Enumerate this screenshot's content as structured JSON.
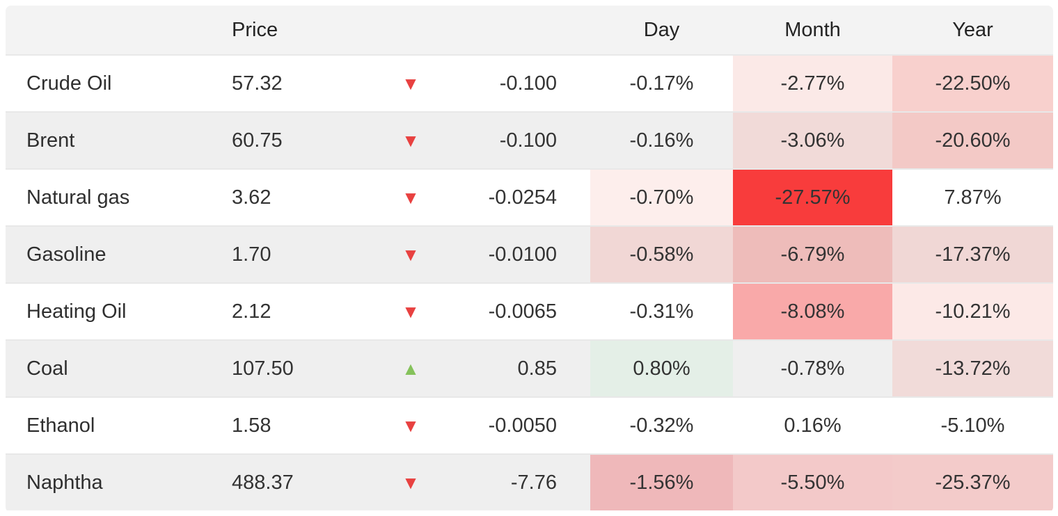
{
  "colors": {
    "header_bg": "#f3f3f3",
    "zebra_row_bg": "#efefef",
    "row_bg": "#ffffff",
    "separator": "#e8e8e8",
    "text": "#333333",
    "down_arrow": "#e84140",
    "up_arrow": "#85c25b",
    "strong_negative_cell": "#f83c3c",
    "positive_cell": "#e4efe7"
  },
  "table": {
    "headers": {
      "name": "",
      "price": "Price",
      "day": "Day",
      "month": "Month",
      "year": "Year"
    },
    "rows": [
      {
        "name": "Crude Oil",
        "price": "57.32",
        "direction": "down",
        "change": "-0.100",
        "day": "-0.17%",
        "month": "-2.77%",
        "year": "-22.50%",
        "day_bg": "",
        "month_bg": "#fbe9e7",
        "year_bg": "#f8d0cd"
      },
      {
        "name": "Brent",
        "price": "60.75",
        "direction": "down",
        "change": "-0.100",
        "day": "-0.16%",
        "month": "-3.06%",
        "year": "-20.60%",
        "day_bg": "",
        "month_bg": "#f1dad8",
        "year_bg": "#f3c9c6"
      },
      {
        "name": "Natural gas",
        "price": "3.62",
        "direction": "down",
        "change": "-0.0254",
        "day": "-0.70%",
        "month": "-27.57%",
        "year": "7.87%",
        "day_bg": "#fdeeec",
        "month_bg": "#f83c3c",
        "year_bg": ""
      },
      {
        "name": "Gasoline",
        "price": "1.70",
        "direction": "down",
        "change": "-0.0100",
        "day": "-0.58%",
        "month": "-6.79%",
        "year": "-17.37%",
        "day_bg": "#f1d7d5",
        "month_bg": "#eebcba",
        "year_bg": "#f0d7d5"
      },
      {
        "name": "Heating Oil",
        "price": "2.12",
        "direction": "down",
        "change": "-0.0065",
        "day": "-0.31%",
        "month": "-8.08%",
        "year": "-10.21%",
        "day_bg": "",
        "month_bg": "#f9a9a9",
        "year_bg": "#fce9e7"
      },
      {
        "name": "Coal",
        "price": "107.50",
        "direction": "up",
        "change": "0.85",
        "day": "0.80%",
        "month": "-0.78%",
        "year": "-13.72%",
        "day_bg": "#e4efe7",
        "month_bg": "",
        "year_bg": "#f1dbd9"
      },
      {
        "name": "Ethanol",
        "price": "1.58",
        "direction": "down",
        "change": "-0.0050",
        "day": "-0.32%",
        "month": "0.16%",
        "year": "-5.10%",
        "day_bg": "",
        "month_bg": "",
        "year_bg": ""
      },
      {
        "name": "Naphtha",
        "price": "488.37",
        "direction": "down",
        "change": "-7.76",
        "day": "-1.56%",
        "month": "-5.50%",
        "year": "-25.37%",
        "day_bg": "#efb8ba",
        "month_bg": "#f3c9c9",
        "year_bg": "#f3cbca"
      }
    ]
  }
}
